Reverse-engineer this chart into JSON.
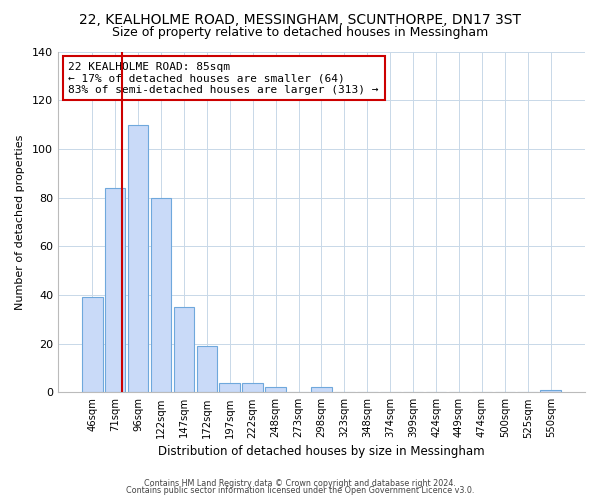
{
  "title_line1": "22, KEALHOLME ROAD, MESSINGHAM, SCUNTHORPE, DN17 3ST",
  "title_line2": "Size of property relative to detached houses in Messingham",
  "xlabel": "Distribution of detached houses by size in Messingham",
  "ylabel": "Number of detached properties",
  "bar_labels": [
    "46sqm",
    "71sqm",
    "96sqm",
    "122sqm",
    "147sqm",
    "172sqm",
    "197sqm",
    "222sqm",
    "248sqm",
    "273sqm",
    "298sqm",
    "323sqm",
    "348sqm",
    "374sqm",
    "399sqm",
    "424sqm",
    "449sqm",
    "474sqm",
    "500sqm",
    "525sqm",
    "550sqm"
  ],
  "bar_heights": [
    39,
    84,
    110,
    80,
    35,
    19,
    4,
    4,
    2,
    0,
    2,
    0,
    0,
    0,
    0,
    0,
    0,
    0,
    0,
    0,
    1
  ],
  "bar_color": "#c9daf8",
  "bar_edge_color": "#6fa8dc",
  "vline_x": 1.32,
  "vline_color": "#cc0000",
  "ylim": [
    0,
    140
  ],
  "yticks": [
    0,
    20,
    40,
    60,
    80,
    100,
    120,
    140
  ],
  "annotation_title": "22 KEALHOLME ROAD: 85sqm",
  "annotation_line1": "← 17% of detached houses are smaller (64)",
  "annotation_line2": "83% of semi-detached houses are larger (313) →",
  "footer_line1": "Contains HM Land Registry data © Crown copyright and database right 2024.",
  "footer_line2": "Contains public sector information licensed under the Open Government Licence v3.0.",
  "background_color": "#ffffff",
  "grid_color": "#c8d8e8",
  "title_fontsize": 10,
  "subtitle_fontsize": 9
}
